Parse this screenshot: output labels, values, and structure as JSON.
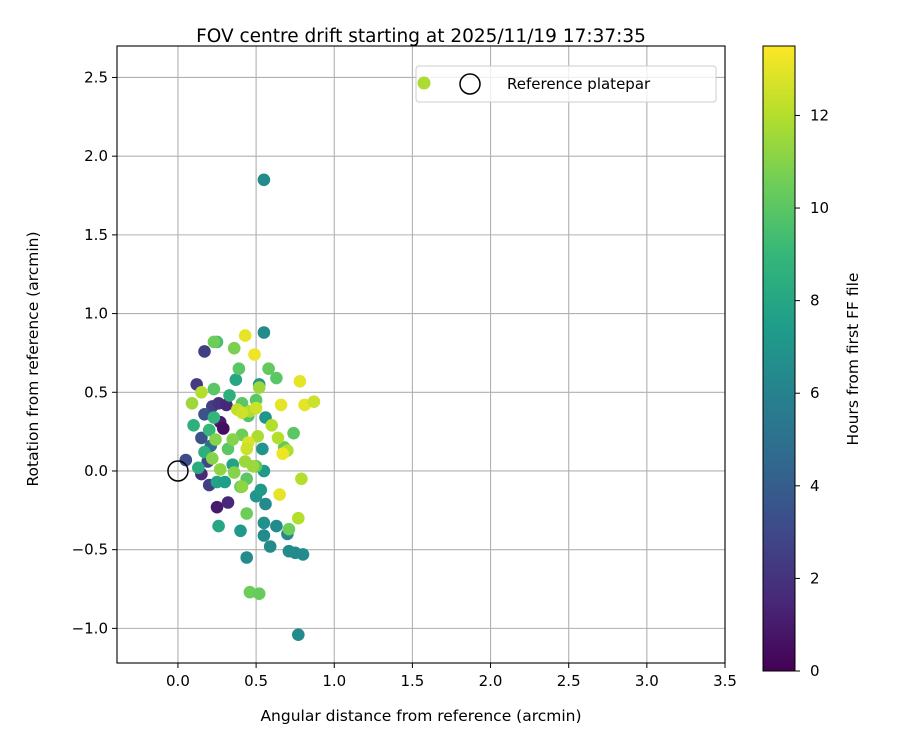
{
  "chart_data": {
    "type": "scatter",
    "title": "FOV centre drift starting at 2025/11/19 17:37:35",
    "xlabel": "Angular distance from reference (arcmin)",
    "ylabel": "Rotation from reference (arcmin)",
    "xlim": [
      -0.39,
      3.5
    ],
    "ylim": [
      -1.22,
      2.7
    ],
    "xticks": [
      0.0,
      0.5,
      1.0,
      1.5,
      2.0,
      2.5,
      3.0,
      3.5
    ],
    "xtick_labels": [
      "0.0",
      "0.5",
      "1.0",
      "1.5",
      "2.0",
      "2.5",
      "3.0",
      "3.5"
    ],
    "yticks": [
      -1.0,
      -0.5,
      0.0,
      0.5,
      1.0,
      1.5,
      2.0,
      2.5
    ],
    "ytick_labels": [
      "−1.0",
      "−0.5",
      "0.0",
      "0.5",
      "1.0",
      "1.5",
      "2.0",
      "2.5"
    ],
    "grid": true,
    "legend": {
      "placement": "top-right",
      "label": "Reference platepar"
    },
    "colorbar": {
      "label": "Hours from first FF file",
      "min": 0,
      "max": 13.5,
      "ticks": [
        0,
        2,
        4,
        6,
        8,
        10,
        12
      ],
      "tick_labels": [
        "0",
        "2",
        "4",
        "6",
        "8",
        "10",
        "12"
      ],
      "colormap": "viridis"
    },
    "reference_point": {
      "x": 0.0,
      "y": 0.0
    },
    "points": [
      {
        "x": 0.05,
        "y": 0.07,
        "h": 3.2
      },
      {
        "x": 0.12,
        "y": 0.55,
        "h": 2.3
      },
      {
        "x": 0.17,
        "y": 0.76,
        "h": 2.5
      },
      {
        "x": 0.22,
        "y": 0.41,
        "h": 2.6
      },
      {
        "x": 0.26,
        "y": 0.43,
        "h": 2.0
      },
      {
        "x": 0.27,
        "y": 0.31,
        "h": 1.0
      },
      {
        "x": 0.29,
        "y": 0.27,
        "h": 0.5
      },
      {
        "x": 0.31,
        "y": 0.42,
        "h": 1.5
      },
      {
        "x": 0.2,
        "y": -0.09,
        "h": 2.5
      },
      {
        "x": 0.25,
        "y": -0.23,
        "h": 1.0
      },
      {
        "x": 0.32,
        "y": -0.2,
        "h": 1.5
      },
      {
        "x": 0.15,
        "y": -0.02,
        "h": 1.6
      },
      {
        "x": 0.19,
        "y": 0.06,
        "h": 3.0
      },
      {
        "x": 0.15,
        "y": 0.21,
        "h": 3.4
      },
      {
        "x": 0.17,
        "y": 0.36,
        "h": 3.5
      },
      {
        "x": 0.21,
        "y": 0.16,
        "h": 5.0
      },
      {
        "x": 0.55,
        "y": 1.85,
        "h": 6.5
      },
      {
        "x": 0.55,
        "y": 0.88,
        "h": 6.5
      },
      {
        "x": 0.52,
        "y": 0.55,
        "h": 7.0
      },
      {
        "x": 0.56,
        "y": 0.34,
        "h": 7.0
      },
      {
        "x": 0.54,
        "y": 0.14,
        "h": 7.0
      },
      {
        "x": 0.55,
        "y": 0.0,
        "h": 7.2
      },
      {
        "x": 0.5,
        "y": -0.16,
        "h": 7.0
      },
      {
        "x": 0.53,
        "y": -0.12,
        "h": 7.2
      },
      {
        "x": 0.56,
        "y": -0.21,
        "h": 6.5
      },
      {
        "x": 0.55,
        "y": -0.33,
        "h": 6.8
      },
      {
        "x": 0.55,
        "y": -0.41,
        "h": 6.5
      },
      {
        "x": 0.59,
        "y": -0.48,
        "h": 6.5
      },
      {
        "x": 0.63,
        "y": -0.35,
        "h": 6.5
      },
      {
        "x": 0.7,
        "y": -0.4,
        "h": 6.2
      },
      {
        "x": 0.71,
        "y": -0.51,
        "h": 6.5
      },
      {
        "x": 0.75,
        "y": -0.52,
        "h": 6.5
      },
      {
        "x": 0.8,
        "y": -0.53,
        "h": 6.5
      },
      {
        "x": 0.44,
        "y": -0.55,
        "h": 6.5
      },
      {
        "x": 0.77,
        "y": -1.04,
        "h": 6.5
      },
      {
        "x": 0.4,
        "y": -0.38,
        "h": 7.2
      },
      {
        "x": 0.26,
        "y": -0.35,
        "h": 8.0
      },
      {
        "x": 0.25,
        "y": -0.07,
        "h": 7.8
      },
      {
        "x": 0.3,
        "y": -0.07,
        "h": 7.5
      },
      {
        "x": 0.35,
        "y": 0.04,
        "h": 7.8
      },
      {
        "x": 0.37,
        "y": 0.58,
        "h": 8.0
      },
      {
        "x": 0.33,
        "y": 0.48,
        "h": 8.5
      },
      {
        "x": 0.1,
        "y": 0.29,
        "h": 8.5
      },
      {
        "x": 0.13,
        "y": 0.02,
        "h": 8.3
      },
      {
        "x": 0.17,
        "y": 0.12,
        "h": 8.5
      },
      {
        "x": 0.2,
        "y": 0.26,
        "h": 9.0
      },
      {
        "x": 0.23,
        "y": 0.34,
        "h": 8.8
      },
      {
        "x": 0.25,
        "y": 0.82,
        "h": 9.5
      },
      {
        "x": 0.23,
        "y": 0.52,
        "h": 10.0
      },
      {
        "x": 0.39,
        "y": 0.65,
        "h": 10.0
      },
      {
        "x": 0.41,
        "y": 0.43,
        "h": 10.0
      },
      {
        "x": 0.45,
        "y": 0.35,
        "h": 9.8
      },
      {
        "x": 0.5,
        "y": 0.45,
        "h": 10.0
      },
      {
        "x": 0.58,
        "y": 0.65,
        "h": 10.2
      },
      {
        "x": 0.63,
        "y": 0.59,
        "h": 10.0
      },
      {
        "x": 0.74,
        "y": 0.24,
        "h": 10.0
      },
      {
        "x": 0.68,
        "y": 0.15,
        "h": 10.2
      },
      {
        "x": 0.32,
        "y": 0.14,
        "h": 10.0
      },
      {
        "x": 0.4,
        "y": -0.1,
        "h": 10.0
      },
      {
        "x": 0.44,
        "y": -0.05,
        "h": 10.0
      },
      {
        "x": 0.5,
        "y": 0.03,
        "h": 10.2
      },
      {
        "x": 0.46,
        "y": -0.77,
        "h": 10.5
      },
      {
        "x": 0.52,
        "y": -0.78,
        "h": 10.3
      },
      {
        "x": 0.44,
        "y": -0.27,
        "h": 10.5
      },
      {
        "x": 0.71,
        "y": -0.37,
        "h": 10.5
      },
      {
        "x": 0.23,
        "y": 0.82,
        "h": 10.5
      },
      {
        "x": 0.36,
        "y": 0.78,
        "h": 10.8
      },
      {
        "x": 0.41,
        "y": 0.23,
        "h": 10.5
      },
      {
        "x": 0.35,
        "y": 0.2,
        "h": 11.0
      },
      {
        "x": 0.22,
        "y": 0.08,
        "h": 11.0
      },
      {
        "x": 0.24,
        "y": 0.2,
        "h": 11.0
      },
      {
        "x": 0.27,
        "y": 0.01,
        "h": 11.2
      },
      {
        "x": 0.36,
        "y": -0.01,
        "h": 11.0
      },
      {
        "x": 0.41,
        "y": -0.1,
        "h": 11.2
      },
      {
        "x": 0.43,
        "y": 0.06,
        "h": 11.5
      },
      {
        "x": 0.48,
        "y": 0.03,
        "h": 11.5
      },
      {
        "x": 0.51,
        "y": 0.22,
        "h": 11.8
      },
      {
        "x": 0.52,
        "y": 0.53,
        "h": 11.5
      },
      {
        "x": 0.46,
        "y": 0.38,
        "h": 12.0
      },
      {
        "x": 0.6,
        "y": 0.29,
        "h": 12.0
      },
      {
        "x": 0.64,
        "y": 0.21,
        "h": 12.0
      },
      {
        "x": 0.7,
        "y": 0.13,
        "h": 12.0
      },
      {
        "x": 0.79,
        "y": -0.05,
        "h": 12.0
      },
      {
        "x": 0.77,
        "y": -0.3,
        "h": 12.0
      },
      {
        "x": 0.09,
        "y": 0.43,
        "h": 11.5
      },
      {
        "x": 0.15,
        "y": 0.5,
        "h": 12.0
      },
      {
        "x": 0.38,
        "y": 0.39,
        "h": 12.2
      },
      {
        "x": 0.43,
        "y": 0.86,
        "h": 13.0
      },
      {
        "x": 0.49,
        "y": 0.74,
        "h": 13.2
      },
      {
        "x": 0.66,
        "y": 0.42,
        "h": 13.0
      },
      {
        "x": 0.78,
        "y": 0.57,
        "h": 13.0
      },
      {
        "x": 0.81,
        "y": 0.42,
        "h": 13.0
      },
      {
        "x": 0.87,
        "y": 0.44,
        "h": 12.5
      },
      {
        "x": 0.65,
        "y": -0.15,
        "h": 13.0
      },
      {
        "x": 0.67,
        "y": 0.11,
        "h": 13.2
      },
      {
        "x": 0.45,
        "y": 0.18,
        "h": 12.8
      },
      {
        "x": 0.41,
        "y": 0.37,
        "h": 12.5
      },
      {
        "x": 0.5,
        "y": 0.4,
        "h": 12.5
      },
      {
        "x": 0.44,
        "y": 0.14,
        "h": 12.5
      }
    ]
  }
}
